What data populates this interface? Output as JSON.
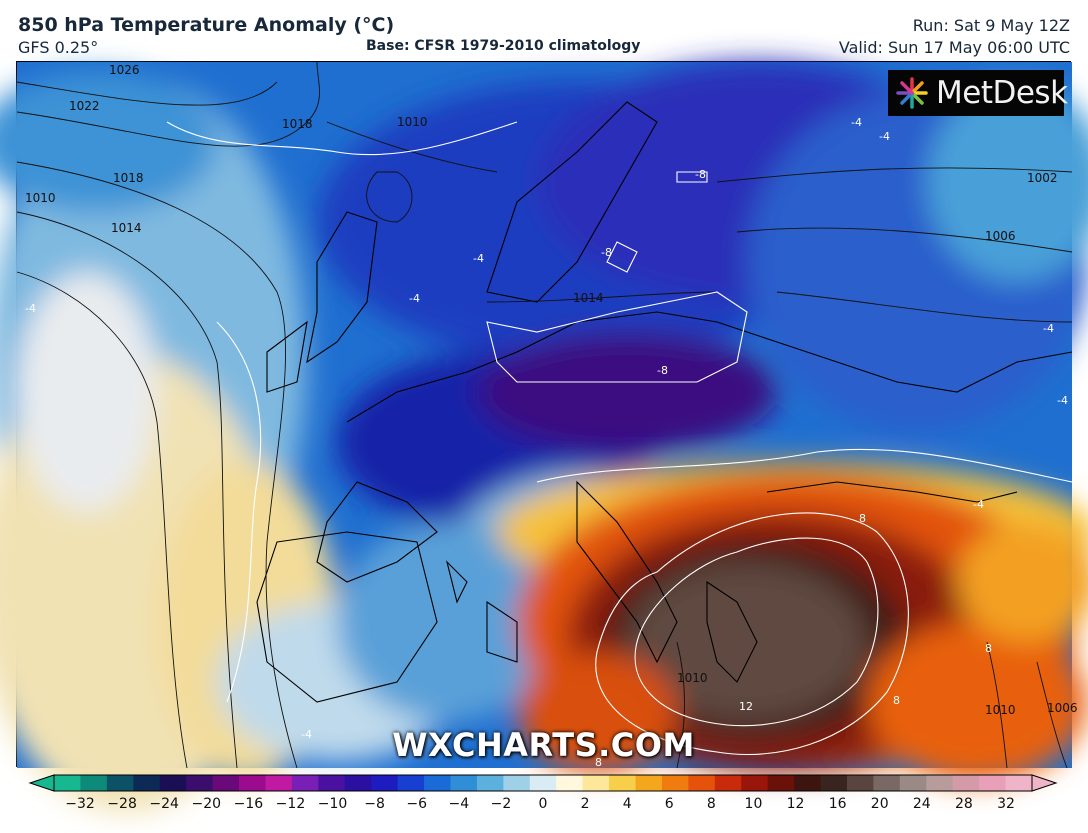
{
  "header": {
    "title": "850 hPa Temperature Anomaly (°C)",
    "model": "GFS 0.25°",
    "base": "Base: CFSR 1979-2010 climatology",
    "run": "Run: Sat 9 May 12Z",
    "valid": "Valid: Sun 17 May 06:00 UTC"
  },
  "logo": {
    "text": "MetDesk",
    "icon": "metdesk-pinwheel-icon"
  },
  "watermark": "WXCHARTS.COM",
  "map": {
    "isobar_labels": [
      "1026",
      "1022",
      "1018",
      "1014",
      "1010",
      "1018",
      "1010",
      "1014",
      "1002",
      "1006",
      "1010",
      "1010",
      "1006"
    ],
    "anomaly_labels": [
      "-4",
      "-4",
      "-4",
      "-4",
      "-4",
      "-4",
      "-4",
      "-8",
      "-8",
      "-8",
      "8",
      "8",
      "8",
      "12",
      "-4",
      "-4",
      "8"
    ]
  },
  "colorbar": {
    "ticks": [
      "−32",
      "−28",
      "−24",
      "−20",
      "−16",
      "−12",
      "−10",
      "−8",
      "−6",
      "−4",
      "−2",
      "0",
      "2",
      "4",
      "6",
      "8",
      "10",
      "12",
      "16",
      "20",
      "24",
      "28",
      "32"
    ],
    "colors": [
      "#17b78f",
      "#0d8a7a",
      "#0c5266",
      "#0c2a55",
      "#1a0f55",
      "#3b0e6e",
      "#6a0a7a",
      "#9b0a8f",
      "#c01aa3",
      "#7a1fb5",
      "#4a10a0",
      "#2b0fa0",
      "#1c1cc0",
      "#1840d0",
      "#1a6ad8",
      "#2f8ed6",
      "#5bb0de",
      "#9ed0e8",
      "#d9ecf4",
      "#fff8dc",
      "#fce79a",
      "#f8cf4a",
      "#f4a71c",
      "#f07c10",
      "#e4520c",
      "#c82a0a",
      "#9a160a",
      "#6a120a",
      "#3e140e",
      "#3a2420",
      "#5a4440",
      "#7a6864",
      "#9a8a86",
      "#b89c9c",
      "#d49aa8",
      "#e8a0b8",
      "#f0b4c8"
    ]
  }
}
